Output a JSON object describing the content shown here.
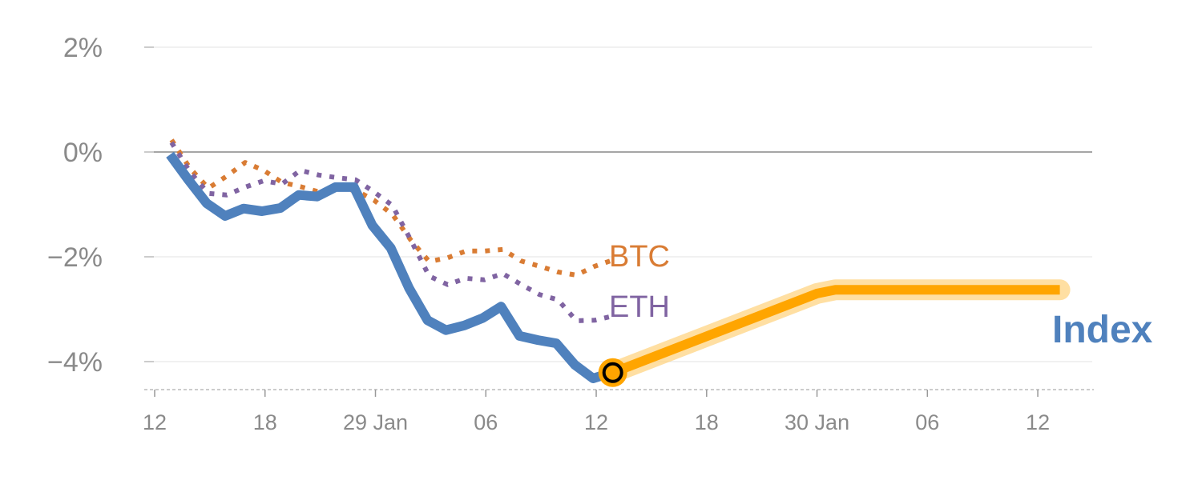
{
  "chart_data": {
    "type": "line",
    "title": "",
    "xlabel": "",
    "ylabel": "",
    "x_unit": "hours since 28 Jan 12:00",
    "xlim": [
      -0.5,
      51
    ],
    "ylim": [
      -4.5,
      2.4
    ],
    "grid": true,
    "x_ticks": [
      {
        "hour": 0,
        "label": "12"
      },
      {
        "hour": 6,
        "label": "18"
      },
      {
        "hour": 12,
        "label": "29 Jan"
      },
      {
        "hour": 18,
        "label": "06"
      },
      {
        "hour": 24,
        "label": "12"
      },
      {
        "hour": 30,
        "label": "18"
      },
      {
        "hour": 36,
        "label": "30 Jan"
      },
      {
        "hour": 42,
        "label": "06"
      },
      {
        "hour": 48,
        "label": "12"
      }
    ],
    "y_ticks": [
      {
        "value": 2,
        "label": "2%"
      },
      {
        "value": 0,
        "label": "0%"
      },
      {
        "value": -2,
        "label": "−2%"
      },
      {
        "value": -4,
        "label": "−4%"
      }
    ],
    "series": [
      {
        "name": "BTC",
        "label": "BTC",
        "color": "#d97c34",
        "style": "dotted",
        "x_start": 0.92,
        "x_step": 1,
        "values": [
          0.23,
          -0.31,
          -0.69,
          -0.46,
          -0.2,
          -0.35,
          -0.58,
          -0.66,
          -0.76,
          -0.7,
          -0.73,
          -0.92,
          -1.19,
          -1.68,
          -2.09,
          -2.02,
          -1.89,
          -1.89,
          -1.86,
          -2.08,
          -2.18,
          -2.29,
          -2.35,
          -2.18,
          -2.06
        ]
      },
      {
        "name": "ETH",
        "label": "ETH",
        "color": "#8064a2",
        "style": "dotted",
        "x_start": 0.92,
        "x_step": 1,
        "values": [
          0.18,
          -0.38,
          -0.79,
          -0.82,
          -0.67,
          -0.55,
          -0.61,
          -0.35,
          -0.44,
          -0.49,
          -0.53,
          -0.76,
          -1.02,
          -1.68,
          -2.37,
          -2.53,
          -2.41,
          -2.44,
          -2.32,
          -2.53,
          -2.72,
          -2.82,
          -3.22,
          -3.21,
          -3.13
        ]
      },
      {
        "name": "Index",
        "label": "Index",
        "color": "#4f81bd",
        "style": "solid",
        "x_start": 0.83,
        "x_step": 1,
        "values": [
          -0.05,
          -0.53,
          -0.98,
          -1.22,
          -1.08,
          -1.13,
          -1.07,
          -0.82,
          -0.85,
          -0.67,
          -0.67,
          -1.4,
          -1.83,
          -2.6,
          -3.21,
          -3.4,
          -3.31,
          -3.17,
          -2.95,
          -3.51,
          -3.59,
          -3.65,
          -4.06,
          -4.32,
          -4.21
        ]
      }
    ],
    "projection": {
      "name": "Index projection",
      "color": "#ffa500",
      "points": [
        [
          24.9,
          -4.21
        ],
        [
          36,
          -2.7
        ],
        [
          37,
          -2.63
        ],
        [
          49.2,
          -2.63
        ]
      ]
    },
    "marker": {
      "x": 24.9,
      "y": -4.21,
      "color": "#ffa500"
    }
  }
}
